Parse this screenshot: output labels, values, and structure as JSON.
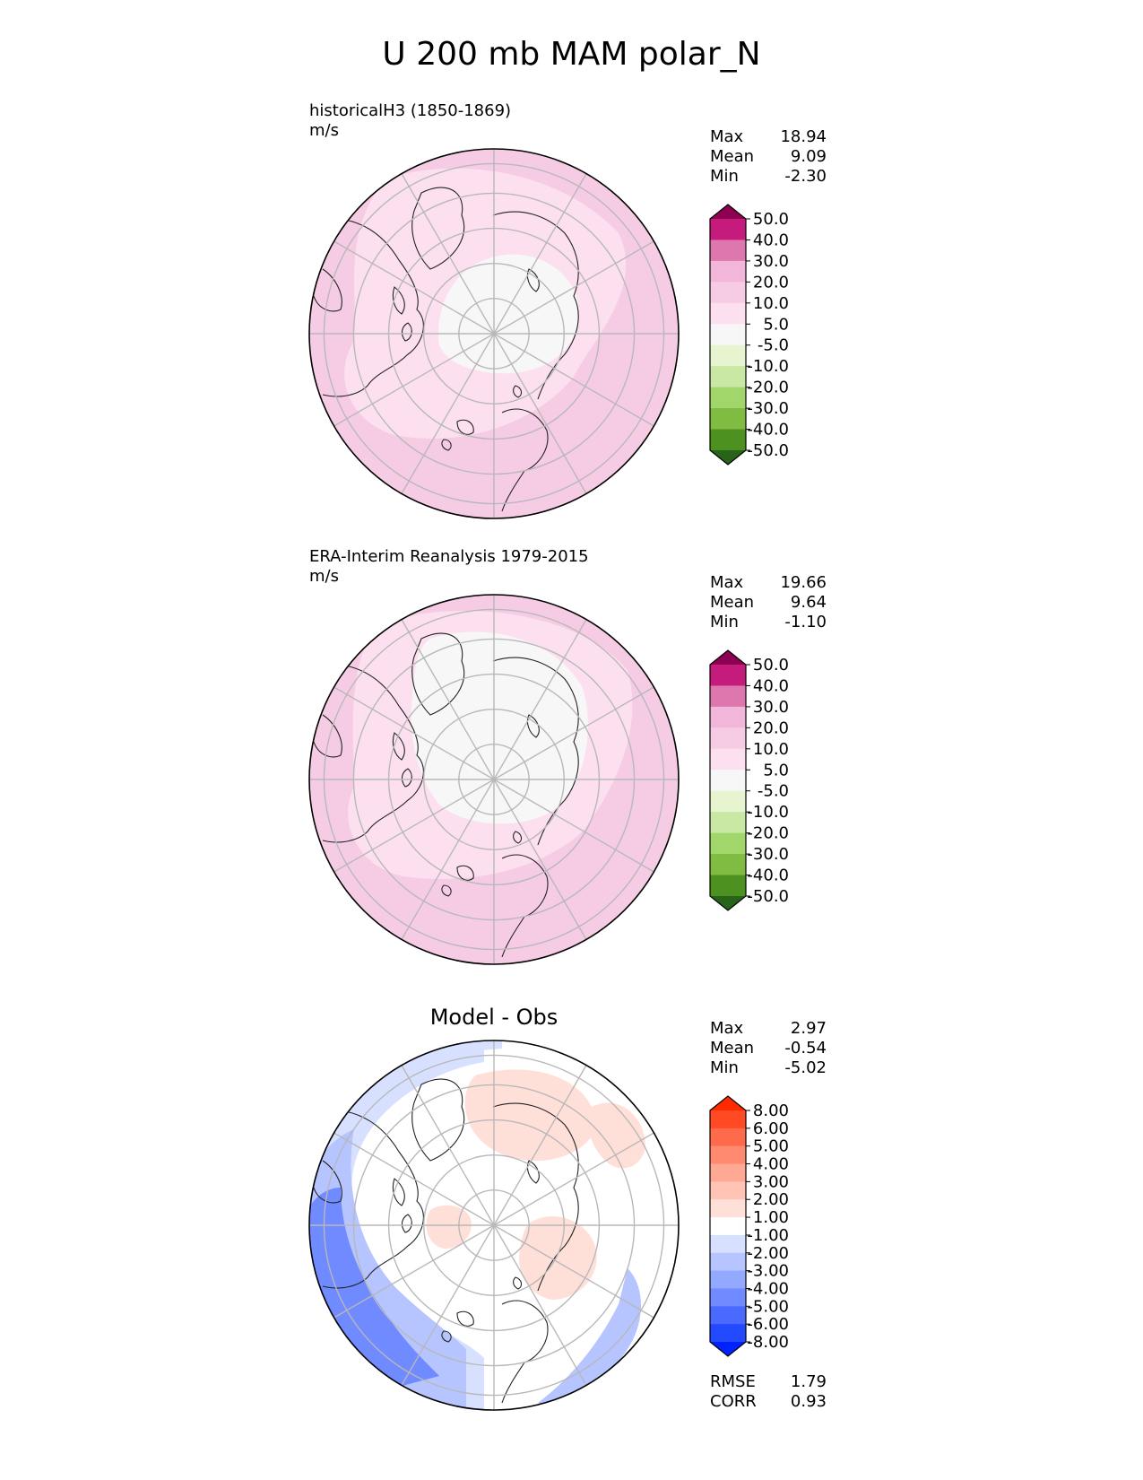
{
  "title": "U 200 mb MAM polar_N",
  "colors": {
    "land_outline": "#222222",
    "grid": "#b8b8b8",
    "rim": "#000000"
  },
  "chart_data": [
    {
      "type": "heatmap",
      "projection": "north-polar-stereographic",
      "subtitle": "historicalH3 (1850-1869)",
      "units": "m/s",
      "stats": [
        {
          "label": "Max",
          "value": "18.94"
        },
        {
          "label": "Mean",
          "value": "9.09"
        },
        {
          "label": "Min",
          "value": "-2.30"
        }
      ],
      "colorbar": {
        "levels": [
          "50.0",
          "40.0",
          "30.0",
          "20.0",
          "10.0",
          "5.0",
          "-5.0",
          "-10.0",
          "-20.0",
          "-30.0",
          "-40.0",
          "-50.0"
        ],
        "colors": [
          "#8e0152",
          "#c51b7d",
          "#de77ae",
          "#f1b6da",
          "#f6cce5",
          "#fde0ef",
          "#f7f7f7",
          "#e6f5d0",
          "#c9e8a3",
          "#a1d76a",
          "#7fbc41",
          "#4d9221",
          "#276419"
        ]
      }
    },
    {
      "type": "heatmap",
      "projection": "north-polar-stereographic",
      "subtitle": "ERA-Interim Reanalysis 1979-2015",
      "units": "m/s",
      "stats": [
        {
          "label": "Max",
          "value": "19.66"
        },
        {
          "label": "Mean",
          "value": "9.64"
        },
        {
          "label": "Min",
          "value": "-1.10"
        }
      ],
      "colorbar": {
        "levels": [
          "50.0",
          "40.0",
          "30.0",
          "20.0",
          "10.0",
          "5.0",
          "-5.0",
          "-10.0",
          "-20.0",
          "-30.0",
          "-40.0",
          "-50.0"
        ],
        "colors": [
          "#8e0152",
          "#c51b7d",
          "#de77ae",
          "#f1b6da",
          "#f6cce5",
          "#fde0ef",
          "#f7f7f7",
          "#e6f5d0",
          "#c9e8a3",
          "#a1d76a",
          "#7fbc41",
          "#4d9221",
          "#276419"
        ]
      }
    },
    {
      "type": "heatmap",
      "projection": "north-polar-stereographic",
      "title": "Model - Obs",
      "stats": [
        {
          "label": "Max",
          "value": "2.97"
        },
        {
          "label": "Mean",
          "value": "-0.54"
        },
        {
          "label": "Min",
          "value": "-5.02"
        }
      ],
      "metrics": [
        {
          "label": "RMSE",
          "value": "1.79"
        },
        {
          "label": "CORR",
          "value": "0.93"
        }
      ],
      "colorbar": {
        "levels": [
          "8.00",
          "6.00",
          "5.00",
          "4.00",
          "3.00",
          "2.00",
          "1.00",
          "-1.00",
          "-2.00",
          "-3.00",
          "-4.00",
          "-5.00",
          "-6.00",
          "-8.00"
        ],
        "colors": [
          "#ff2a00",
          "#ff4a24",
          "#ff6a4a",
          "#ff8a70",
          "#ffa893",
          "#ffc4b6",
          "#ffe0d8",
          "#ffffff",
          "#d8e0ff",
          "#b6c4ff",
          "#93a8ff",
          "#708aff",
          "#4a6aff",
          "#244aff",
          "#0022ff"
        ]
      }
    }
  ]
}
